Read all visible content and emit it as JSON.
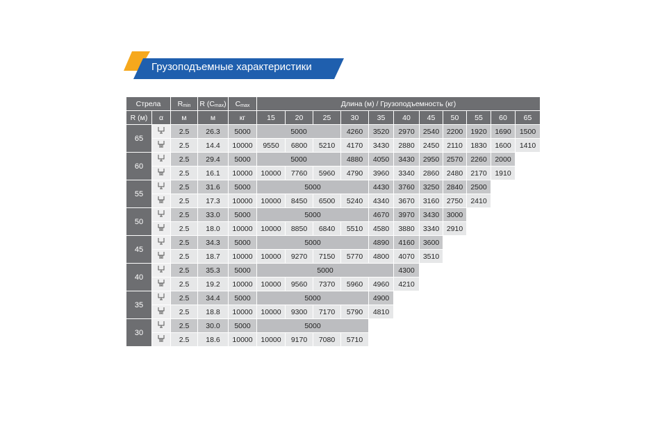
{
  "title": "Грузоподъемные характеристики",
  "header": {
    "boom": "Стрела",
    "rmin": {
      "main": "R",
      "sub": "min"
    },
    "rcmax": {
      "main": "R (C",
      "sub": "max",
      "tail": ")"
    },
    "cmax": {
      "main": "C",
      "sub": "max"
    },
    "lengths_title": "Длина (м) / Грузоподъемность (кг)",
    "sub": {
      "r": "R (м)",
      "alpha": "α",
      "rmin_unit": "м",
      "rcmax_unit": "м",
      "cmax_unit": "кг"
    },
    "lengths": [
      "15",
      "20",
      "25",
      "30",
      "35",
      "40",
      "45",
      "50",
      "55",
      "60",
      "65"
    ]
  },
  "groups": [
    {
      "boom": "65",
      "rows": [
        {
          "rmin": "2.5",
          "r": "26.3",
          "cmax": "5000",
          "loads": [
            "5000",
            null,
            null,
            "4260",
            "3520",
            "2970",
            "2540",
            "2200",
            "1920",
            "1690",
            "1500"
          ]
        },
        {
          "rmin": "2.5",
          "r": "14.4",
          "cmax": "10000",
          "loads": [
            "9550",
            "6800",
            "5210",
            "4170",
            "3430",
            "2880",
            "2450",
            "2110",
            "1830",
            "1600",
            "1410"
          ]
        }
      ]
    },
    {
      "boom": "60",
      "rows": [
        {
          "rmin": "2.5",
          "r": "29.4",
          "cmax": "5000",
          "loads": [
            "5000",
            null,
            null,
            "4880",
            "4050",
            "3430",
            "2950",
            "2570",
            "2260",
            "2000"
          ]
        },
        {
          "rmin": "2.5",
          "r": "16.1",
          "cmax": "10000",
          "loads": [
            "10000",
            "7760",
            "5960",
            "4790",
            "3960",
            "3340",
            "2860",
            "2480",
            "2170",
            "1910"
          ]
        }
      ]
    },
    {
      "boom": "55",
      "rows": [
        {
          "rmin": "2.5",
          "r": "31.6",
          "cmax": "5000",
          "loads": [
            "5000",
            null,
            null,
            null,
            "4430",
            "3760",
            "3250",
            "2840",
            "2500"
          ]
        },
        {
          "rmin": "2.5",
          "r": "17.3",
          "cmax": "10000",
          "loads": [
            "10000",
            "8450",
            "6500",
            "5240",
            "4340",
            "3670",
            "3160",
            "2750",
            "2410"
          ]
        }
      ]
    },
    {
      "boom": "50",
      "rows": [
        {
          "rmin": "2.5",
          "r": "33.0",
          "cmax": "5000",
          "loads": [
            "5000",
            null,
            null,
            null,
            "4670",
            "3970",
            "3430",
            "3000"
          ]
        },
        {
          "rmin": "2.5",
          "r": "18.0",
          "cmax": "10000",
          "loads": [
            "10000",
            "8850",
            "6840",
            "5510",
            "4580",
            "3880",
            "3340",
            "2910"
          ]
        }
      ]
    },
    {
      "boom": "45",
      "rows": [
        {
          "rmin": "2.5",
          "r": "34.3",
          "cmax": "5000",
          "loads": [
            "5000",
            null,
            null,
            null,
            "4890",
            "4160",
            "3600"
          ]
        },
        {
          "rmin": "2.5",
          "r": "18.7",
          "cmax": "10000",
          "loads": [
            "10000",
            "9270",
            "7150",
            "5770",
            "4800",
            "4070",
            "3510"
          ]
        }
      ]
    },
    {
      "boom": "40",
      "rows": [
        {
          "rmin": "2.5",
          "r": "35.3",
          "cmax": "5000",
          "loads": [
            "5000",
            null,
            null,
            null,
            null,
            "4300"
          ]
        },
        {
          "rmin": "2.5",
          "r": "19.2",
          "cmax": "10000",
          "loads": [
            "10000",
            "9560",
            "7370",
            "5960",
            "4960",
            "4210"
          ]
        }
      ]
    },
    {
      "boom": "35",
      "rows": [
        {
          "rmin": "2.5",
          "r": "34.4",
          "cmax": "5000",
          "loads": [
            "5000",
            null,
            null,
            null,
            "4900"
          ]
        },
        {
          "rmin": "2.5",
          "r": "18.8",
          "cmax": "10000",
          "loads": [
            "10000",
            "9300",
            "7170",
            "5790",
            "4810"
          ]
        }
      ]
    },
    {
      "boom": "30",
      "rows": [
        {
          "rmin": "2.5",
          "r": "30.0",
          "cmax": "5000",
          "loads": [
            "5000",
            null,
            null,
            null
          ]
        },
        {
          "rmin": "2.5",
          "r": "18.6",
          "cmax": "10000",
          "loads": [
            "10000",
            "9170",
            "7080",
            "5710"
          ]
        }
      ]
    }
  ]
}
